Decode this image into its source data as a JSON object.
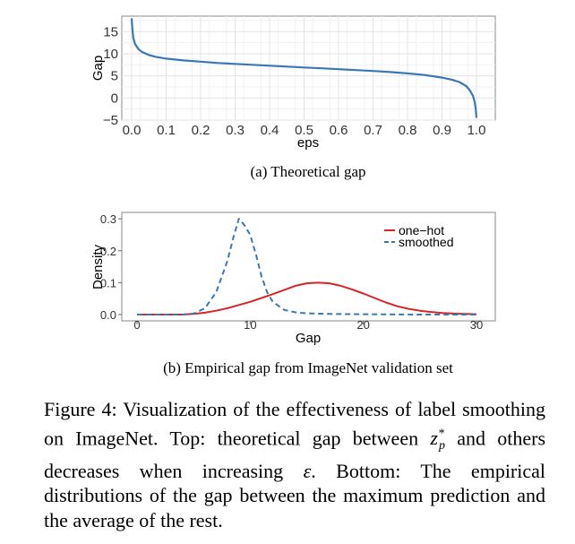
{
  "chart_data": [
    {
      "type": "line",
      "subcaption": "(a) Theoretical gap",
      "xlabel": "eps",
      "ylabel": "Gap",
      "xlim": [
        0,
        1
      ],
      "ylim": [
        -5,
        18.5
      ],
      "grid": true,
      "xticks": [
        "0.0",
        "0.1",
        "0.2",
        "0.3",
        "0.4",
        "0.5",
        "0.6",
        "0.7",
        "0.8",
        "0.9",
        "1.0"
      ],
      "yticks": [
        "-5",
        "0",
        "5",
        "10",
        "15"
      ],
      "series": [
        {
          "color": "#3a78b5",
          "x": [
            0.0,
            0.002,
            0.005,
            0.01,
            0.02,
            0.03,
            0.05,
            0.07,
            0.1,
            0.15,
            0.2,
            0.25,
            0.3,
            0.35,
            0.4,
            0.45,
            0.5,
            0.55,
            0.6,
            0.65,
            0.7,
            0.75,
            0.8,
            0.85,
            0.9,
            0.93,
            0.95,
            0.97,
            0.98,
            0.99,
            0.995,
            0.998,
            1.0
          ],
          "y": [
            18,
            15.5,
            13.5,
            12.2,
            11.0,
            10.4,
            9.7,
            9.3,
            8.9,
            8.5,
            8.2,
            7.9,
            7.7,
            7.5,
            7.3,
            7.1,
            6.9,
            6.7,
            6.5,
            6.3,
            6.1,
            5.85,
            5.55,
            5.2,
            4.6,
            4.1,
            3.6,
            2.7,
            1.8,
            0.5,
            -1.0,
            -2.5,
            -4.5
          ]
        }
      ]
    },
    {
      "type": "line",
      "subcaption": "(b) Empirical gap from ImageNet validation set",
      "xlabel": "Gap",
      "ylabel": "Density",
      "xlim": [
        0,
        30
      ],
      "ylim": [
        0,
        0.32
      ],
      "grid": false,
      "xticks": [
        "0",
        "10",
        "20",
        "30"
      ],
      "yticks": [
        "0.0",
        "0.1",
        "0.2",
        "0.3"
      ],
      "legend": "top-right",
      "series": [
        {
          "name": "one−hot",
          "color": "#d62728",
          "dash": "solid",
          "x": [
            0,
            4,
            5,
            6,
            7,
            8,
            9,
            10,
            11,
            12,
            13,
            14,
            15,
            16,
            17,
            18,
            19,
            20,
            21,
            22,
            23,
            24,
            25,
            26,
            27,
            28,
            29,
            30
          ],
          "y": [
            0.0,
            0.0,
            0.002,
            0.006,
            0.012,
            0.02,
            0.03,
            0.04,
            0.052,
            0.064,
            0.077,
            0.09,
            0.098,
            0.1,
            0.098,
            0.09,
            0.079,
            0.066,
            0.052,
            0.038,
            0.026,
            0.018,
            0.012,
            0.008,
            0.005,
            0.003,
            0.002,
            0.001
          ]
        },
        {
          "name": "smoothed",
          "color": "#3a78b5",
          "dash": "dashed",
          "x": [
            0,
            4,
            5,
            6,
            7,
            7.5,
            8,
            8.5,
            9,
            9.5,
            10,
            10.5,
            11,
            11.5,
            12,
            13,
            14,
            15,
            17,
            20,
            25,
            30
          ],
          "y": [
            0.0,
            0.0,
            0.003,
            0.02,
            0.07,
            0.12,
            0.17,
            0.24,
            0.3,
            0.28,
            0.25,
            0.19,
            0.12,
            0.07,
            0.04,
            0.015,
            0.007,
            0.004,
            0.002,
            0.001,
            0.0,
            0.0
          ]
        }
      ]
    }
  ],
  "caption": {
    "label": "Figure 4:",
    "part1": "Visualization of the effectiveness of label smoothing on ImageNet. Top: theoretical gap between",
    "math_z": "z",
    "math_sub": "p",
    "math_sup": "*",
    "part2": "and others decreases when increasing",
    "math_eps": "ε",
    "part3": ". Bottom: The empirical distributions of the gap between the maximum prediction and the average of the rest."
  }
}
